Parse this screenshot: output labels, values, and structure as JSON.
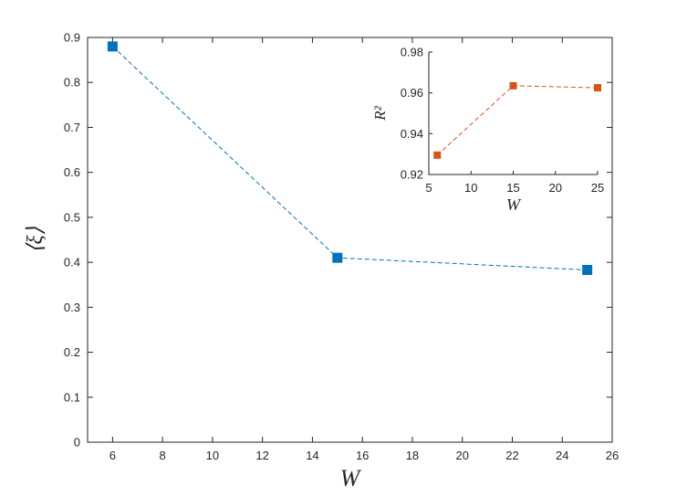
{
  "chart_data": [
    {
      "type": "line",
      "title": "",
      "xlabel": "W",
      "ylabel": "⟨ξ⟩",
      "xlim": [
        5,
        26
      ],
      "ylim": [
        0,
        0.9
      ],
      "xticks": [
        6,
        8,
        10,
        12,
        14,
        16,
        18,
        20,
        22,
        24,
        26
      ],
      "yticks": [
        0,
        0.1,
        0.2,
        0.3,
        0.4,
        0.5,
        0.6,
        0.7,
        0.8,
        0.9
      ],
      "grid": false,
      "line_style": "dashed",
      "marker": "square",
      "color": "#0072BD",
      "series": [
        {
          "x": [
            6,
            15,
            25
          ],
          "values": [
            0.88,
            0.41,
            0.383
          ]
        }
      ]
    },
    {
      "type": "line",
      "title": "",
      "xlabel": "W",
      "ylabel": "R²",
      "xlim": [
        5,
        25
      ],
      "ylim": [
        0.92,
        0.98
      ],
      "xticks": [
        5,
        10,
        15,
        20,
        25
      ],
      "yticks": [
        0.92,
        0.94,
        0.96,
        0.98
      ],
      "grid": false,
      "line_style": "dashed",
      "marker": "square",
      "color": "#D95319",
      "series": [
        {
          "x": [
            6,
            15,
            25
          ],
          "values": [
            0.9295,
            0.9635,
            0.9625
          ]
        }
      ]
    }
  ]
}
